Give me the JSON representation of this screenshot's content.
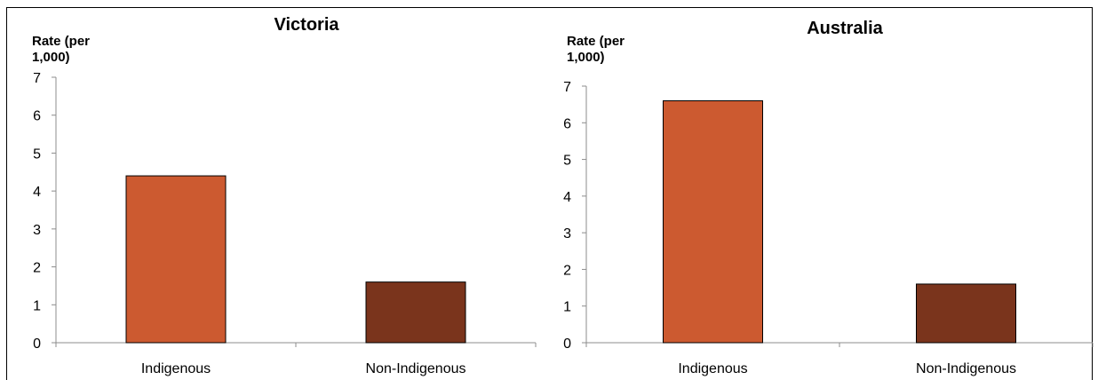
{
  "chart_data": [
    {
      "type": "bar",
      "title": "Victoria",
      "xlabel": "",
      "ylabel": "Rate (per 1,000)",
      "ylabel_lines": [
        "Rate (per",
        "1,000)"
      ],
      "categories": [
        "Indigenous",
        "Non-Indigenous"
      ],
      "values": [
        4.4,
        1.6
      ],
      "bar_colors": [
        "#CC5A30",
        "#7A341C"
      ],
      "ylim": [
        0,
        7
      ],
      "yticks": [
        "0",
        "1",
        "2",
        "3",
        "4",
        "5",
        "6",
        "7"
      ],
      "grid": false,
      "legend": "none"
    },
    {
      "type": "bar",
      "title": "Australia",
      "xlabel": "",
      "ylabel": "Rate (per 1,000)",
      "ylabel_lines": [
        "Rate (per",
        "1,000)"
      ],
      "categories": [
        "Indigenous",
        "Non-Indigenous"
      ],
      "values": [
        6.6,
        1.6
      ],
      "bar_colors": [
        "#CC5A30",
        "#7A341C"
      ],
      "ylim": [
        0,
        7
      ],
      "yticks": [
        "0",
        "1",
        "2",
        "3",
        "4",
        "5",
        "6",
        "7"
      ],
      "grid": false,
      "legend": "none"
    }
  ]
}
